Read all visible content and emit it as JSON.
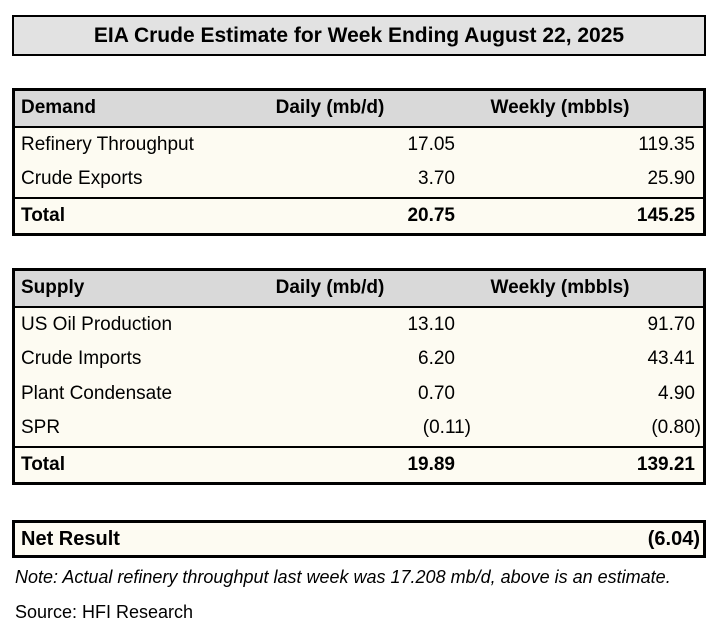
{
  "title": "EIA Crude Estimate for Week Ending August 22, 2025",
  "colors": {
    "page_bg": "#ffffff",
    "title_bg": "#e2e2e2",
    "header_bg": "#d9d9d9",
    "body_bg": "#fdfbf2",
    "border": "#000000",
    "text": "#000000"
  },
  "tables": [
    {
      "name": "demand",
      "header": [
        "Demand",
        "Daily (mb/d)",
        "Weekly (mbbls)"
      ],
      "rows": [
        [
          "Refinery Throughput",
          "17.05",
          "119.35"
        ],
        [
          "Crude Exports",
          "3.70",
          "25.90"
        ]
      ],
      "total": [
        "Total",
        "20.75",
        "145.25"
      ]
    },
    {
      "name": "supply",
      "header": [
        "Supply",
        "Daily (mb/d)",
        "Weekly (mbbls)"
      ],
      "rows": [
        [
          "US Oil Production",
          "13.10",
          "91.70"
        ],
        [
          "Crude Imports",
          "6.20",
          "43.41"
        ],
        [
          "Plant Condensate",
          "0.70",
          "4.90"
        ],
        [
          "SPR",
          "(0.11)",
          "(0.80)"
        ]
      ],
      "total": [
        "Total",
        "19.89",
        "139.21"
      ]
    }
  ],
  "net_result": {
    "label": "Net Result",
    "value": "(6.04)"
  },
  "note": "Note: Actual refinery throughput last week was 17.208 mb/d, above is an estimate.",
  "source": "Source: HFI Research"
}
